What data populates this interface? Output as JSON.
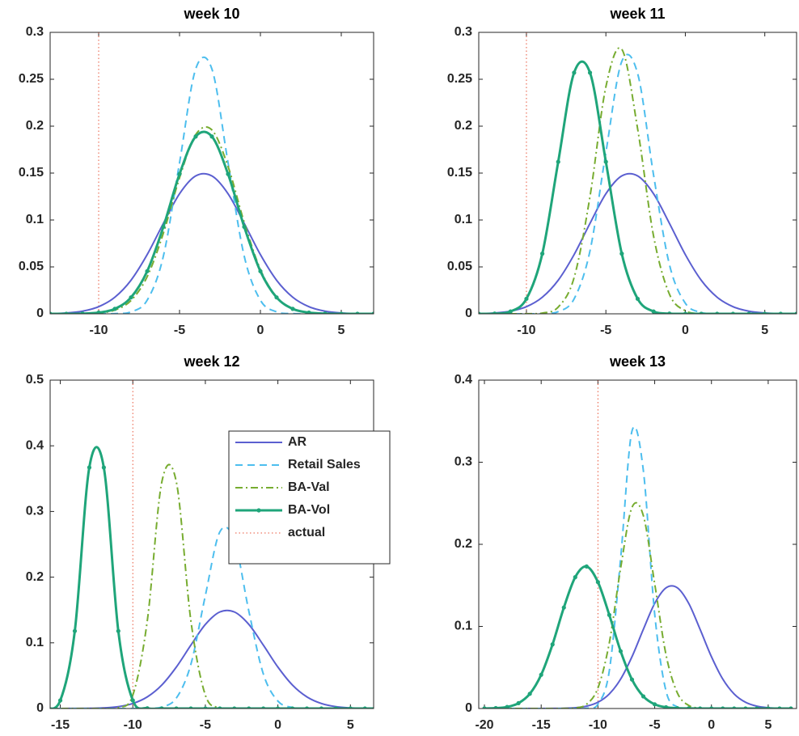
{
  "chart_data": [
    {
      "type": "line",
      "title": "week 10",
      "x": [
        -13,
        -12,
        -11,
        -10,
        -9,
        -8,
        -7,
        -6,
        -5,
        -4,
        -3,
        -2,
        -1,
        0,
        1,
        2,
        3,
        4,
        5,
        6,
        7
      ],
      "xlim": [
        -13,
        7
      ],
      "ylim": [
        0,
        0.3
      ],
      "xticks": [
        -10,
        -5,
        0,
        5
      ],
      "yticks": [
        0,
        0.05,
        0.1,
        0.15,
        0.2,
        0.25,
        0.3
      ],
      "reference_line": {
        "name": "actual",
        "x": -10,
        "color": "#e8553a"
      },
      "series": [
        {
          "name": "AR",
          "color": "#5b5fd0",
          "linestyle": "solid",
          "values": [
            0.0003,
            0.0009,
            0.0028,
            0.0076,
            0.0177,
            0.0358,
            0.0631,
            0.0964,
            0.128,
            0.147,
            0.147,
            0.128,
            0.0964,
            0.0631,
            0.0358,
            0.0177,
            0.0076,
            0.0028,
            0.0009,
            0.0003,
            0.0001
          ]
        },
        {
          "name": "Retail Sales",
          "color": "#4dbeee",
          "linestyle": "dashed",
          "values": [
            0,
            0,
            0,
            0,
            0.0002,
            0.0021,
            0.0145,
            0.0614,
            0.161,
            0.261,
            0.261,
            0.161,
            0.0614,
            0.0145,
            0.0021,
            0.0002,
            0,
            0,
            0,
            0,
            0
          ]
        },
        {
          "name": "BA-Val",
          "color": "#77ac30",
          "linestyle": "dashdot",
          "values": [
            0,
            0,
            0.0002,
            0.0009,
            0.004,
            0.0142,
            0.0396,
            0.0859,
            0.145,
            0.191,
            0.196,
            0.157,
            0.0974,
            0.0472,
            0.0178,
            0.0052,
            0.0012,
            0.0002,
            0,
            0,
            0
          ]
        },
        {
          "name": "BA-Vol",
          "color": "#1fa57a",
          "linestyle": "solid",
          "marker": "dot",
          "values": [
            0,
            0,
            0.0002,
            0.0013,
            0.0053,
            0.0175,
            0.0454,
            0.0927,
            0.149,
            0.189,
            0.189,
            0.149,
            0.0927,
            0.0454,
            0.0175,
            0.0053,
            0.0013,
            0.0002,
            0,
            0,
            0
          ]
        }
      ]
    },
    {
      "type": "line",
      "title": "week 11",
      "x": [
        -13,
        -12,
        -11,
        -10,
        -9,
        -8,
        -7,
        -6,
        -5,
        -4,
        -3,
        -2,
        -1,
        0,
        1,
        2,
        3,
        4,
        5,
        6,
        7
      ],
      "xlim": [
        -13,
        7
      ],
      "ylim": [
        0,
        0.3
      ],
      "xticks": [
        -10,
        -5,
        0,
        5
      ],
      "yticks": [
        0,
        0.05,
        0.1,
        0.15,
        0.2,
        0.25,
        0.3
      ],
      "reference_line": {
        "name": "actual",
        "x": -10,
        "color": "#e8553a"
      },
      "series": [
        {
          "name": "AR",
          "color": "#5b5fd0",
          "linestyle": "solid",
          "values": [
            0.0003,
            0.0009,
            0.0028,
            0.0076,
            0.0177,
            0.0358,
            0.0631,
            0.0964,
            0.128,
            0.147,
            0.147,
            0.128,
            0.0964,
            0.0631,
            0.0358,
            0.0177,
            0.0076,
            0.0028,
            0.0009,
            0.0003,
            0.0001
          ]
        },
        {
          "name": "Retail Sales",
          "color": "#4dbeee",
          "linestyle": "dashed",
          "values": [
            0,
            0,
            0,
            0,
            0.0002,
            0.0023,
            0.0159,
            0.0671,
            0.172,
            0.269,
            0.256,
            0.148,
            0.0524,
            0.0113,
            0.0015,
            0.0002,
            0,
            0,
            0,
            0,
            0
          ]
        },
        {
          "name": "BA-Val",
          "color": "#77ac30",
          "linestyle": "dashdot",
          "values": [
            0,
            0,
            0,
            0.0001,
            0.0008,
            0.0072,
            0.0386,
            0.125,
            0.242,
            0.282,
            0.197,
            0.0829,
            0.0209,
            0.0032,
            0.0003,
            0,
            0,
            0,
            0,
            0,
            0
          ]
        },
        {
          "name": "BA-Vol",
          "color": "#1fa57a",
          "linestyle": "solid",
          "marker": "dot",
          "values": [
            0,
            0.0002,
            0.0025,
            0.016,
            0.0641,
            0.162,
            0.257,
            0.257,
            0.162,
            0.0641,
            0.016,
            0.0025,
            0.0002,
            0,
            0,
            0,
            0,
            0,
            0,
            0,
            0
          ]
        }
      ]
    },
    {
      "type": "line",
      "title": "week 12",
      "x": [
        -16,
        -15,
        -14,
        -13,
        -12,
        -11,
        -10,
        -9,
        -8,
        -7,
        -6,
        -5,
        -4,
        -3,
        -2,
        -1,
        0,
        1,
        2,
        3,
        4,
        5,
        6,
        7
      ],
      "xlim": [
        -15.7,
        6.6
      ],
      "ylim": [
        0,
        0.5
      ],
      "xticks": [
        -15,
        -10,
        -5,
        0,
        5
      ],
      "yticks": [
        0,
        0.1,
        0.2,
        0.3,
        0.4,
        0.5
      ],
      "legend": "northeast",
      "reference_line": {
        "name": "actual",
        "x": -10,
        "color": "#e8553a"
      },
      "series": [
        {
          "name": "AR",
          "color": "#5b5fd0",
          "linestyle": "solid",
          "values": [
            0,
            0,
            0.0001,
            0.0003,
            0.0009,
            0.0028,
            0.0076,
            0.0177,
            0.0358,
            0.0631,
            0.0964,
            0.128,
            0.147,
            0.147,
            0.128,
            0.0964,
            0.0631,
            0.0358,
            0.0177,
            0.0076,
            0.0028,
            0.0009,
            0.0003,
            0.0001
          ]
        },
        {
          "name": "Retail Sales",
          "color": "#4dbeee",
          "linestyle": "dashed",
          "values": [
            0,
            0,
            0,
            0,
            0,
            0,
            0,
            0.0002,
            0.0023,
            0.0159,
            0.0671,
            0.172,
            0.269,
            0.256,
            0.148,
            0.0524,
            0.0113,
            0.0015,
            0.0002,
            0,
            0,
            0,
            0,
            0
          ]
        },
        {
          "name": "BA-Val",
          "color": "#77ac30",
          "linestyle": "dashdot",
          "values": [
            0,
            0,
            0,
            0,
            0,
            0.0012,
            0.0204,
            0.134,
            0.345,
            0.345,
            0.134,
            0.0204,
            0.0012,
            0,
            0,
            0,
            0,
            0,
            0,
            0,
            0,
            0,
            0,
            0
          ]
        },
        {
          "name": "BA-Vol",
          "color": "#1fa57a",
          "linestyle": "solid",
          "marker": "dot",
          "values": [
            0.0004,
            0.0123,
            0.118,
            0.367,
            0.367,
            0.118,
            0.0123,
            0.0004,
            0,
            0,
            0,
            0,
            0,
            0,
            0,
            0,
            0,
            0,
            0,
            0,
            0,
            0,
            0,
            0
          ]
        }
      ]
    },
    {
      "type": "line",
      "title": "week 13",
      "x": [
        -20,
        -19,
        -18,
        -17,
        -16,
        -15,
        -14,
        -13,
        -12,
        -11,
        -10,
        -9,
        -8,
        -7,
        -6,
        -5,
        -4,
        -3,
        -2,
        -1,
        0,
        1,
        2,
        3,
        4,
        5,
        6,
        7
      ],
      "xlim": [
        -20.5,
        7.5
      ],
      "ylim": [
        0,
        0.4
      ],
      "xticks": [
        -20,
        -15,
        -10,
        -5,
        0,
        5
      ],
      "yticks": [
        0,
        0.1,
        0.2,
        0.3,
        0.4
      ],
      "reference_line": {
        "name": "actual",
        "x": -10,
        "color": "#e8553a"
      },
      "series": [
        {
          "name": "AR",
          "color": "#5b5fd0",
          "linestyle": "solid",
          "values": [
            0,
            0,
            0,
            0,
            0,
            0,
            0.0001,
            0.0003,
            0.0009,
            0.0028,
            0.0076,
            0.0177,
            0.0358,
            0.0631,
            0.0964,
            0.128,
            0.147,
            0.147,
            0.128,
            0.0964,
            0.0631,
            0.0358,
            0.0177,
            0.0076,
            0.0028,
            0.0009,
            0.0003,
            0.0001
          ]
        },
        {
          "name": "Retail Sales",
          "color": "#4dbeee",
          "linestyle": "dashed",
          "values": [
            0,
            0,
            0,
            0,
            0,
            0,
            0,
            0,
            0,
            0.0003,
            0.0053,
            0.0457,
            0.183,
            0.338,
            0.29,
            0.115,
            0.0212,
            0.0018,
            0.0001,
            0,
            0,
            0,
            0,
            0,
            0,
            0,
            0,
            0
          ]
        },
        {
          "name": "BA-Val",
          "color": "#77ac30",
          "linestyle": "dashdot",
          "values": [
            0,
            0,
            0,
            0,
            0,
            0,
            0,
            0.0001,
            0.0007,
            0.0052,
            0.025,
            0.0798,
            0.171,
            0.245,
            0.235,
            0.152,
            0.0653,
            0.0189,
            0.0037,
            0.0005,
            0.0001,
            0,
            0,
            0,
            0,
            0,
            0,
            0
          ]
        },
        {
          "name": "BA-Vol",
          "color": "#1fa57a",
          "linestyle": "solid",
          "marker": "dot",
          "values": [
            0.0001,
            0.0005,
            0.0019,
            0.0065,
            0.0179,
            0.0411,
            0.0781,
            0.123,
            0.16,
            0.173,
            0.154,
            0.114,
            0.0698,
            0.0353,
            0.0148,
            0.0051,
            0.0015,
            0.0004,
            0.0001,
            0,
            0,
            0,
            0,
            0,
            0,
            0,
            0,
            0
          ]
        }
      ]
    }
  ]
}
